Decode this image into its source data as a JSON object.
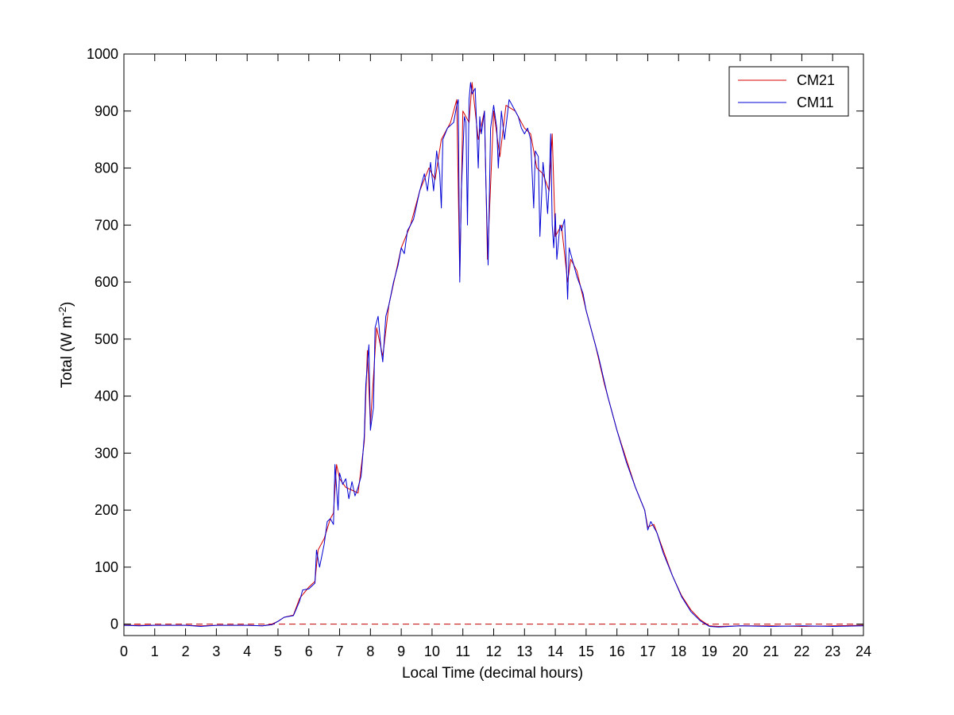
{
  "chart_data": {
    "type": "line",
    "xlabel": "Local Time (decimal hours)",
    "ylabel_main": "Total (W m",
    "ylabel_sup": "-2",
    "ylabel_close": ")",
    "xlim": [
      0,
      24
    ],
    "ylim": [
      -20,
      1000
    ],
    "xticks": [
      "0",
      "1",
      "2",
      "3",
      "4",
      "5",
      "6",
      "7",
      "8",
      "9",
      "10",
      "11",
      "12",
      "13",
      "14",
      "15",
      "16",
      "17",
      "18",
      "19",
      "20",
      "21",
      "22",
      "23",
      "24"
    ],
    "yticks": [
      "0",
      "100",
      "200",
      "300",
      "400",
      "500",
      "600",
      "700",
      "800",
      "900",
      "1000"
    ],
    "grid": false,
    "legend_position": "top-right",
    "reference_line": {
      "y": 0,
      "style": "dashed",
      "color": "#c00000"
    },
    "series": [
      {
        "name": "CM21",
        "color": "#d40000",
        "points": [
          [
            0,
            -2
          ],
          [
            1,
            -2
          ],
          [
            2,
            -2
          ],
          [
            2.5,
            -3
          ],
          [
            3,
            -2
          ],
          [
            4,
            -2
          ],
          [
            4.5,
            -3
          ],
          [
            4.8,
            0
          ],
          [
            5.0,
            5
          ],
          [
            5.2,
            12
          ],
          [
            5.5,
            16
          ],
          [
            5.7,
            45
          ],
          [
            6.0,
            65
          ],
          [
            6.2,
            75
          ],
          [
            6.3,
            130
          ],
          [
            6.5,
            150
          ],
          [
            6.7,
            185
          ],
          [
            6.8,
            195
          ],
          [
            6.9,
            280
          ],
          [
            7.0,
            255
          ],
          [
            7.2,
            240
          ],
          [
            7.4,
            235
          ],
          [
            7.6,
            230
          ],
          [
            7.8,
            320
          ],
          [
            7.9,
            480
          ],
          [
            8.0,
            350
          ],
          [
            8.2,
            520
          ],
          [
            8.4,
            470
          ],
          [
            8.6,
            560
          ],
          [
            8.8,
            610
          ],
          [
            9.0,
            660
          ],
          [
            9.3,
            700
          ],
          [
            9.6,
            760
          ],
          [
            9.9,
            800
          ],
          [
            10.1,
            780
          ],
          [
            10.3,
            850
          ],
          [
            10.6,
            880
          ],
          [
            10.8,
            920
          ],
          [
            10.9,
            610
          ],
          [
            11.0,
            900
          ],
          [
            11.2,
            880
          ],
          [
            11.3,
            950
          ],
          [
            11.5,
            850
          ],
          [
            11.7,
            900
          ],
          [
            11.8,
            640
          ],
          [
            12.0,
            900
          ],
          [
            12.2,
            820
          ],
          [
            12.4,
            910
          ],
          [
            12.7,
            900
          ],
          [
            13.0,
            870
          ],
          [
            13.2,
            860
          ],
          [
            13.4,
            800
          ],
          [
            13.6,
            790
          ],
          [
            13.8,
            760
          ],
          [
            13.9,
            860
          ],
          [
            14.0,
            680
          ],
          [
            14.2,
            700
          ],
          [
            14.4,
            600
          ],
          [
            14.5,
            640
          ],
          [
            14.7,
            620
          ],
          [
            15.0,
            550
          ],
          [
            15.3,
            490
          ],
          [
            15.6,
            420
          ],
          [
            16.0,
            340
          ],
          [
            16.3,
            290
          ],
          [
            16.6,
            240
          ],
          [
            16.9,
            200
          ],
          [
            17.0,
            170
          ],
          [
            17.2,
            175
          ],
          [
            17.5,
            130
          ],
          [
            17.8,
            85
          ],
          [
            18.1,
            50
          ],
          [
            18.4,
            25
          ],
          [
            18.7,
            8
          ],
          [
            19.0,
            -3
          ],
          [
            19.3,
            -4
          ],
          [
            20,
            -3
          ],
          [
            21,
            -3
          ],
          [
            22,
            -4
          ],
          [
            23,
            -3
          ],
          [
            24,
            -2
          ]
        ]
      },
      {
        "name": "CM11",
        "color": "#0000d4",
        "points": [
          [
            0,
            -2
          ],
          [
            0.5,
            -3
          ],
          [
            1,
            -2
          ],
          [
            2,
            -2
          ],
          [
            2.5,
            -4
          ],
          [
            3,
            -2
          ],
          [
            4,
            -2
          ],
          [
            4.5,
            -3
          ],
          [
            4.8,
            -1
          ],
          [
            5.0,
            5
          ],
          [
            5.2,
            12
          ],
          [
            5.5,
            15
          ],
          [
            5.7,
            40
          ],
          [
            5.8,
            60
          ],
          [
            6.0,
            62
          ],
          [
            6.2,
            72
          ],
          [
            6.25,
            130
          ],
          [
            6.35,
            100
          ],
          [
            6.5,
            140
          ],
          [
            6.6,
            180
          ],
          [
            6.7,
            185
          ],
          [
            6.8,
            175
          ],
          [
            6.85,
            280
          ],
          [
            6.95,
            200
          ],
          [
            7.0,
            265
          ],
          [
            7.1,
            245
          ],
          [
            7.2,
            255
          ],
          [
            7.3,
            220
          ],
          [
            7.4,
            250
          ],
          [
            7.5,
            225
          ],
          [
            7.6,
            240
          ],
          [
            7.7,
            260
          ],
          [
            7.8,
            330
          ],
          [
            7.85,
            420
          ],
          [
            7.95,
            490
          ],
          [
            8.0,
            340
          ],
          [
            8.1,
            380
          ],
          [
            8.15,
            520
          ],
          [
            8.25,
            540
          ],
          [
            8.35,
            480
          ],
          [
            8.4,
            460
          ],
          [
            8.5,
            540
          ],
          [
            8.6,
            560
          ],
          [
            8.75,
            600
          ],
          [
            8.9,
            630
          ],
          [
            9.0,
            660
          ],
          [
            9.1,
            650
          ],
          [
            9.2,
            690
          ],
          [
            9.4,
            710
          ],
          [
            9.6,
            760
          ],
          [
            9.75,
            790
          ],
          [
            9.85,
            760
          ],
          [
            9.95,
            810
          ],
          [
            10.05,
            760
          ],
          [
            10.15,
            830
          ],
          [
            10.25,
            790
          ],
          [
            10.3,
            730
          ],
          [
            10.35,
            850
          ],
          [
            10.5,
            870
          ],
          [
            10.7,
            880
          ],
          [
            10.8,
            910
          ],
          [
            10.85,
            920
          ],
          [
            10.9,
            600
          ],
          [
            10.95,
            760
          ],
          [
            11.05,
            890
          ],
          [
            11.1,
            880
          ],
          [
            11.15,
            700
          ],
          [
            11.2,
            920
          ],
          [
            11.25,
            950
          ],
          [
            11.3,
            930
          ],
          [
            11.4,
            940
          ],
          [
            11.5,
            800
          ],
          [
            11.55,
            890
          ],
          [
            11.6,
            860
          ],
          [
            11.7,
            900
          ],
          [
            11.75,
            770
          ],
          [
            11.82,
            630
          ],
          [
            11.9,
            870
          ],
          [
            12.0,
            910
          ],
          [
            12.1,
            870
          ],
          [
            12.15,
            800
          ],
          [
            12.25,
            900
          ],
          [
            12.35,
            850
          ],
          [
            12.5,
            920
          ],
          [
            12.7,
            900
          ],
          [
            12.8,
            890
          ],
          [
            12.9,
            870
          ],
          [
            13.0,
            860
          ],
          [
            13.1,
            870
          ],
          [
            13.2,
            850
          ],
          [
            13.3,
            730
          ],
          [
            13.35,
            830
          ],
          [
            13.45,
            820
          ],
          [
            13.5,
            680
          ],
          [
            13.6,
            810
          ],
          [
            13.7,
            760
          ],
          [
            13.75,
            720
          ],
          [
            13.8,
            770
          ],
          [
            13.85,
            860
          ],
          [
            13.9,
            700
          ],
          [
            13.95,
            660
          ],
          [
            14.0,
            720
          ],
          [
            14.05,
            640
          ],
          [
            14.15,
            700
          ],
          [
            14.2,
            690
          ],
          [
            14.3,
            710
          ],
          [
            14.35,
            640
          ],
          [
            14.4,
            570
          ],
          [
            14.45,
            660
          ],
          [
            14.55,
            640
          ],
          [
            14.7,
            610
          ],
          [
            14.9,
            580
          ],
          [
            15.0,
            550
          ],
          [
            15.2,
            510
          ],
          [
            15.4,
            470
          ],
          [
            15.7,
            400
          ],
          [
            16.0,
            340
          ],
          [
            16.3,
            285
          ],
          [
            16.6,
            240
          ],
          [
            16.9,
            200
          ],
          [
            17.0,
            165
          ],
          [
            17.1,
            180
          ],
          [
            17.3,
            160
          ],
          [
            17.5,
            125
          ],
          [
            17.8,
            85
          ],
          [
            18.1,
            48
          ],
          [
            18.4,
            22
          ],
          [
            18.7,
            6
          ],
          [
            19.0,
            -4
          ],
          [
            19.3,
            -5
          ],
          [
            20,
            -3
          ],
          [
            21,
            -4
          ],
          [
            22,
            -3
          ],
          [
            23,
            -4
          ],
          [
            24,
            -3
          ]
        ]
      }
    ]
  }
}
